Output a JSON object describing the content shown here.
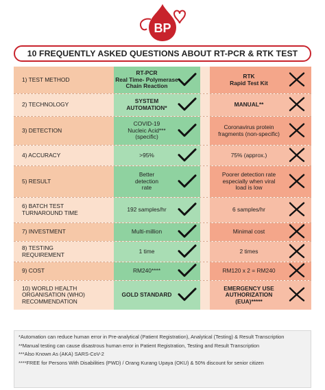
{
  "logo": {
    "text": "BP"
  },
  "title": "10 FREQUENTLY ASKED QUESTIONS ABOUT RT-PCR & RTK TEST",
  "rows": [
    {
      "label": "1) TEST METHOD",
      "pcr": "RT-PCR\nReal Time- Polymerase\nChain Reaction",
      "rtk": "RTK\nRapid Test Kit",
      "bold": true
    },
    {
      "label": "2) TECHNOLOGY",
      "pcr": "SYSTEM\nAUTOMATION*",
      "rtk": "MANUAL**",
      "bold": true
    },
    {
      "label": "3) DETECTION",
      "pcr": "COVID-19\nNucleic Acid***\n(specific)",
      "rtk": "Coronavirus protein\nfragments (non-specific)"
    },
    {
      "label": "4) ACCURACY",
      "pcr": ">95%",
      "rtk": "75% (approx.)"
    },
    {
      "label": "5) RESULT",
      "pcr": "Better\ndetection\nrate",
      "rtk": "Poorer detection rate\nespecially when viral\nload is low"
    },
    {
      "label": "6) BATCH TEST\nTURNAROUND TIME",
      "pcr": "192 samples/hr",
      "rtk": "6 samples/hr"
    },
    {
      "label": "7) INVESTMENT",
      "pcr": "Multi-million",
      "rtk": "Minimal cost"
    },
    {
      "label": "8) TESTING\nREQUIREMENT",
      "pcr": "1 time",
      "rtk": "2 times"
    },
    {
      "label": "9) COST",
      "pcr": "RM240****",
      "rtk": "RM120 x 2 = RM240"
    },
    {
      "label": "10) WORLD HEALTH\nORGANISATION (WHO)\nRECOMMENDATION",
      "pcr": "GOLD STANDARD",
      "rtk": "EMERGENCY USE\nAUTHORIZATION\n(EUA)*****",
      "bold": true
    }
  ],
  "notes": [
    "*Automation can reduce human error in Pre-analytical (Patient Registration), Analytical (Testing) & Result Transcription",
    "**Manual testing can cause disastrous human error in Patient Registration, Testing and Result Transcription",
    "***Also Known As (AKA) SARS-CoV-2",
    "****FREE for Persons With Disabilities (PWD) / Orang Kurang Upaya (OKU) & 50% discount for senior citizen"
  ],
  "icons": {
    "pcr": "check-icon",
    "rtk": "cross-icon"
  },
  "colors": {
    "accent": "#c8232c",
    "pcr": "#8fd2a0",
    "rtk": "#f4a68a",
    "label": "#f6c8a8"
  }
}
